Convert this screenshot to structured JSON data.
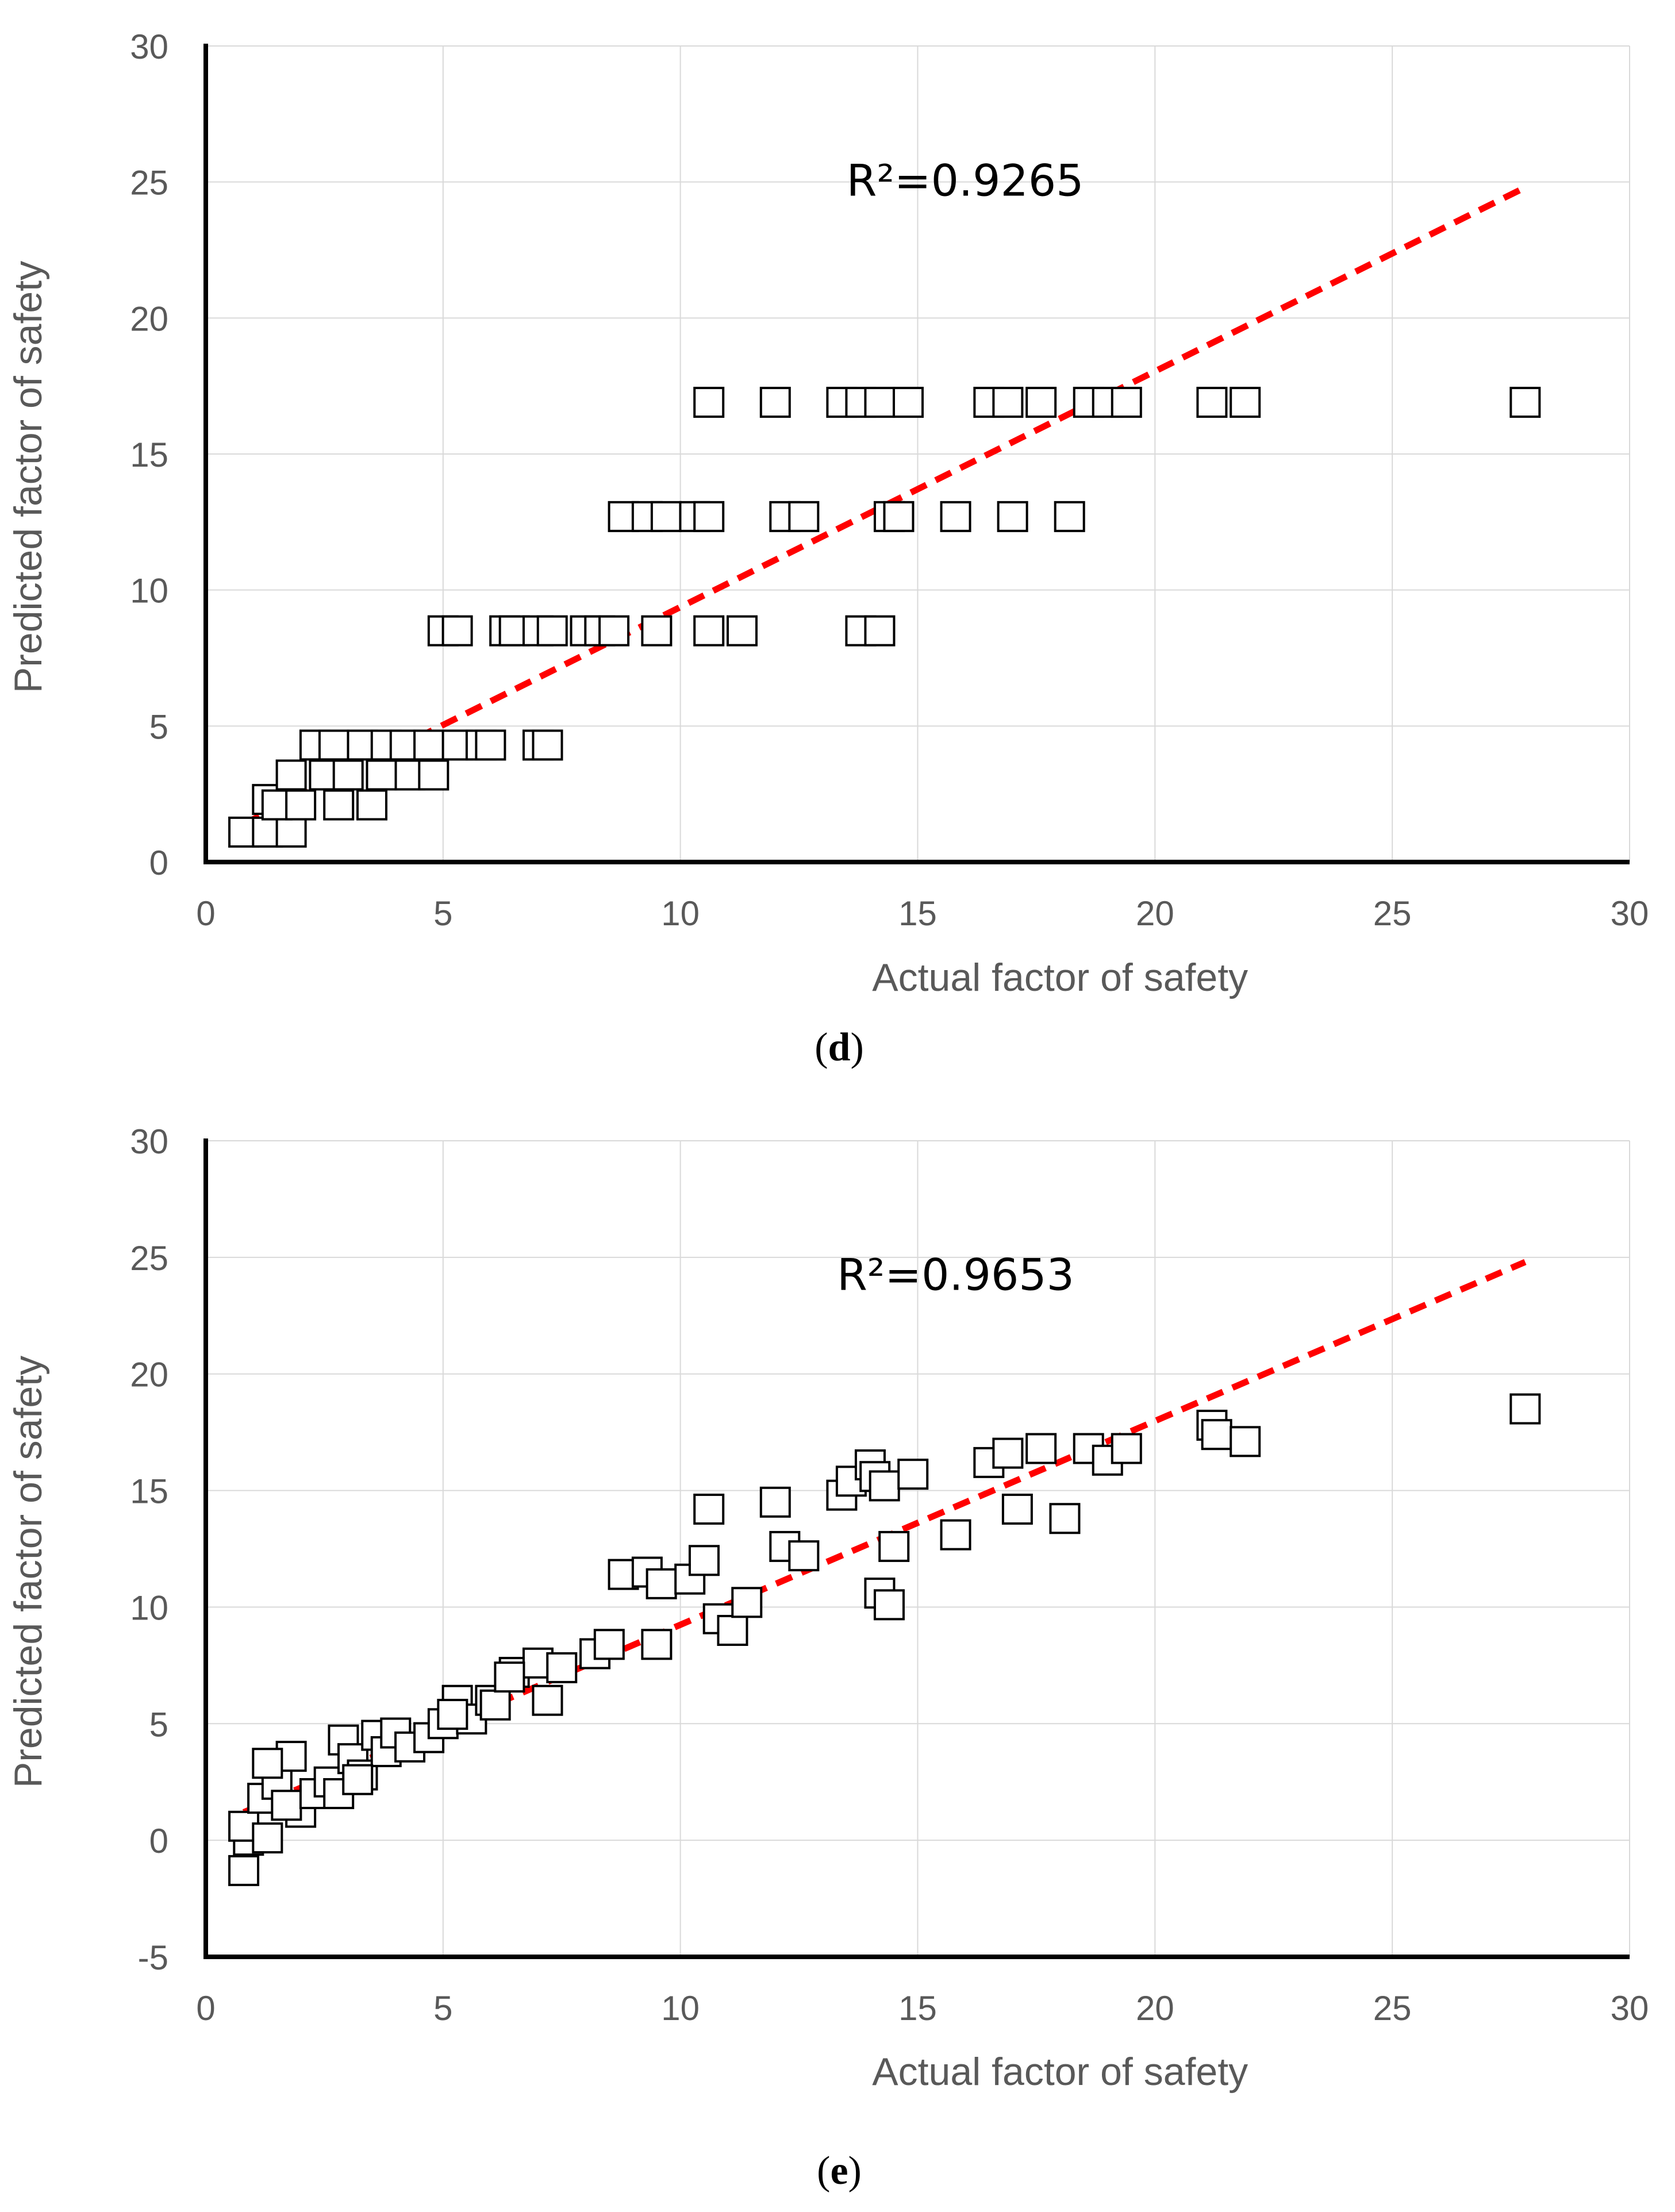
{
  "chart_data": [
    {
      "panel": "d",
      "type": "scatter",
      "caption": "(d)",
      "caption_letter": "d",
      "xlabel": "Actual factor of safety",
      "ylabel": "Predicted factor of safety",
      "xlim": [
        0,
        30
      ],
      "ylim": [
        0,
        30
      ],
      "xticks": [
        0,
        5,
        10,
        15,
        20,
        25,
        30
      ],
      "yticks": [
        0,
        5,
        10,
        15,
        20,
        25,
        30
      ],
      "grid": true,
      "annotation": "R²=0.9265",
      "annotation_at": [
        13.5,
        24.5
      ],
      "trendline": {
        "x": [
          0.8,
          27.8
        ],
        "y": [
          1.4,
          24.8
        ],
        "style": "dashed",
        "color": "#ff0000"
      },
      "series": [
        {
          "name": "points",
          "x": [
            0.8,
            1.3,
            1.8,
            1.3,
            1.5,
            2.0,
            2.8,
            3.5,
            1.8,
            2.5,
            3.0,
            4.3,
            4.8,
            3.7,
            2.3,
            2.7,
            3.3,
            3.8,
            4.2,
            4.7,
            5.3,
            5.8,
            6.0,
            7.0,
            7.2,
            5.0,
            5.3,
            6.3,
            6.5,
            7.0,
            7.3,
            8.0,
            8.3,
            8.6,
            9.5,
            10.6,
            11.3,
            13.8,
            14.2,
            8.8,
            9.3,
            9.7,
            10.3,
            10.6,
            12.2,
            12.6,
            14.4,
            14.6,
            15.8,
            17.0,
            18.2,
            10.6,
            12.0,
            13.4,
            13.8,
            14.2,
            14.8,
            16.5,
            16.9,
            17.6,
            18.6,
            19.0,
            19.4,
            21.2,
            21.9,
            27.8
          ],
          "y": [
            1.1,
            1.1,
            1.1,
            2.3,
            2.1,
            2.1,
            2.1,
            2.1,
            3.2,
            3.2,
            3.2,
            3.2,
            3.2,
            3.2,
            4.3,
            4.3,
            4.3,
            4.3,
            4.3,
            4.3,
            4.3,
            4.3,
            4.3,
            4.3,
            4.3,
            8.5,
            8.5,
            8.5,
            8.5,
            8.5,
            8.5,
            8.5,
            8.5,
            8.5,
            8.5,
            8.5,
            8.5,
            8.5,
            8.5,
            12.7,
            12.7,
            12.7,
            12.7,
            12.7,
            12.7,
            12.7,
            12.7,
            12.7,
            12.7,
            12.7,
            12.7,
            16.9,
            16.9,
            16.9,
            16.9,
            16.9,
            16.9,
            16.9,
            16.9,
            16.9,
            16.9,
            16.9,
            16.9,
            16.9,
            16.9,
            16.9
          ]
        }
      ]
    },
    {
      "panel": "e",
      "type": "scatter",
      "caption": "(e)",
      "caption_letter": "e",
      "xlabel": "Actual factor of safety",
      "ylabel": "Predicted factor of safety",
      "xlim": [
        0,
        30
      ],
      "ylim": [
        -5,
        30
      ],
      "xticks": [
        0,
        5,
        10,
        15,
        20,
        25,
        30
      ],
      "yticks": [
        -5,
        0,
        5,
        10,
        15,
        20,
        25,
        30
      ],
      "grid": true,
      "annotation": "R²=0.9653",
      "annotation_at": [
        13.3,
        23.6
      ],
      "trendline": {
        "x": [
          0.8,
          27.8
        ],
        "y": [
          1.2,
          24.8
        ],
        "style": "dashed",
        "color": "#ff0000"
      },
      "series": [
        {
          "name": "points",
          "x": [
            0.8,
            0.9,
            0.8,
            1.3,
            1.2,
            1.5,
            1.8,
            2.0,
            1.3,
            1.7,
            2.3,
            2.6,
            2.9,
            3.1,
            3.3,
            3.6,
            3.8,
            2.8,
            3.2,
            4.0,
            4.3,
            4.7,
            5.0,
            5.3,
            5.6,
            6.0,
            6.5,
            7.0,
            7.2,
            7.5,
            8.2,
            8.5,
            9.5,
            5.2,
            6.1,
            6.4,
            8.8,
            9.3,
            9.6,
            10.2,
            10.5,
            10.6,
            10.8,
            11.1,
            11.4,
            12.0,
            12.2,
            12.6,
            13.4,
            13.6,
            14.0,
            14.1,
            14.2,
            14.3,
            14.4,
            14.5,
            14.9,
            15.8,
            16.5,
            16.9,
            17.1,
            17.6,
            18.1,
            18.6,
            19.0,
            19.4,
            21.2,
            21.3,
            21.9,
            27.8
          ],
          "y": [
            -1.3,
            0.0,
            0.6,
            0.1,
            1.8,
            2.4,
            3.6,
            1.2,
            3.3,
            1.5,
            2.0,
            2.5,
            4.3,
            3.5,
            2.8,
            4.5,
            3.8,
            2.0,
            2.6,
            4.6,
            4.0,
            4.4,
            5.0,
            6.0,
            5.2,
            6.0,
            7.2,
            7.6,
            6.0,
            7.4,
            8.0,
            8.4,
            8.4,
            5.4,
            5.8,
            7.0,
            11.4,
            11.5,
            11.0,
            11.2,
            12.0,
            14.2,
            9.5,
            9.0,
            10.2,
            14.5,
            12.6,
            12.2,
            14.8,
            15.4,
            16.1,
            15.6,
            10.6,
            15.2,
            10.1,
            12.6,
            15.7,
            13.1,
            16.2,
            16.6,
            14.2,
            16.8,
            13.8,
            16.8,
            16.3,
            16.8,
            17.8,
            17.4,
            17.1,
            18.5
          ]
        }
      ]
    }
  ]
}
